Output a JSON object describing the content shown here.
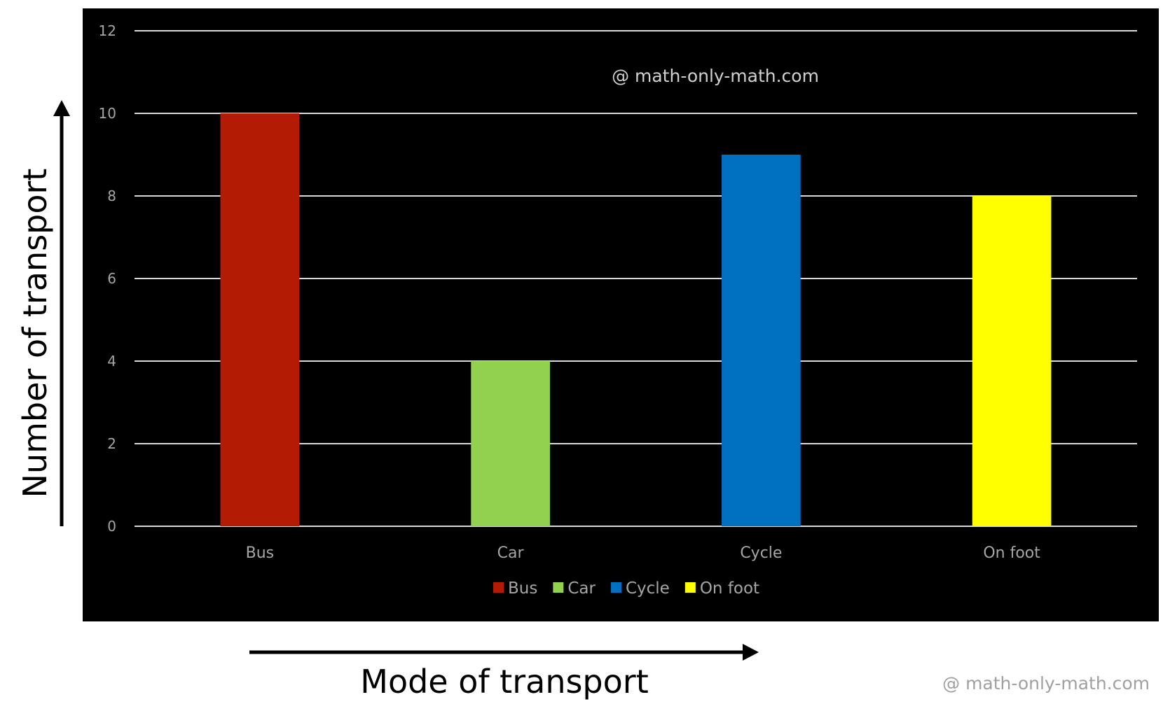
{
  "chart_data": {
    "type": "bar",
    "categories": [
      "Bus",
      "Car",
      "Cycle",
      "On foot"
    ],
    "values": [
      10,
      4,
      9,
      8
    ],
    "colors": [
      "#b31b04",
      "#92d050",
      "#0070c0",
      "#ffff00"
    ],
    "xlabel": "Mode of transport",
    "ylabel": "Number of transport",
    "ylim": [
      0,
      12
    ],
    "yticks": [
      "0",
      "2",
      "4",
      "6",
      "8",
      "10",
      "12"
    ],
    "grid": true,
    "legend": {
      "position": "bottom",
      "entries": [
        "Bus",
        "Car",
        "Cycle",
        "On foot"
      ]
    },
    "background": "#000000"
  },
  "watermarks": {
    "inside": "@ math-only-math.com",
    "outside": "@ math-only-math.com"
  }
}
